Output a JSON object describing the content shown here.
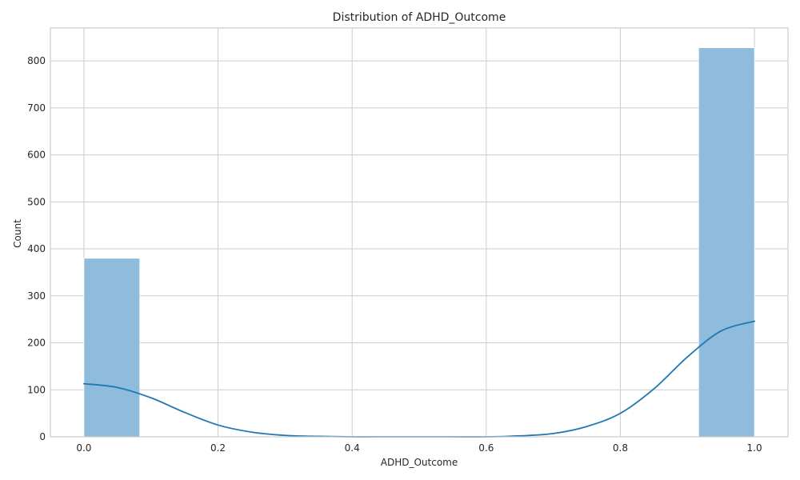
{
  "chart_data": {
    "type": "bar",
    "title": "Distribution of ADHD_Outcome",
    "xlabel": "ADHD_Outcome",
    "ylabel": "Count",
    "xlim": [
      -0.05,
      1.05
    ],
    "ylim": [
      0,
      870
    ],
    "x_ticks": [
      0.0,
      0.2,
      0.4,
      0.6,
      0.8,
      1.0
    ],
    "x_tick_labels": [
      "0.0",
      "0.2",
      "0.4",
      "0.6",
      "0.8",
      "1.0"
    ],
    "y_ticks": [
      0,
      100,
      200,
      300,
      400,
      500,
      600,
      700,
      800
    ],
    "y_tick_labels": [
      "0",
      "100",
      "200",
      "300",
      "400",
      "500",
      "600",
      "700",
      "800"
    ],
    "grid": true,
    "histogram": {
      "bins": [
        {
          "x0": 0.0,
          "x1": 0.0833,
          "count": 380
        },
        {
          "x0": 0.9167,
          "x1": 1.0,
          "count": 828
        }
      ],
      "color": "#8fbbdc"
    },
    "kde": {
      "color": "#1f77b4",
      "x": [
        0.0,
        0.05,
        0.1,
        0.15,
        0.2,
        0.25,
        0.3,
        0.35,
        0.4,
        0.45,
        0.5,
        0.55,
        0.6,
        0.65,
        0.7,
        0.75,
        0.8,
        0.85,
        0.9,
        0.95,
        1.0
      ],
      "y": [
        113,
        105,
        83,
        52,
        25,
        10,
        3,
        1,
        0,
        0,
        0,
        0,
        0,
        2,
        7,
        22,
        50,
        102,
        170,
        225,
        246
      ]
    }
  }
}
